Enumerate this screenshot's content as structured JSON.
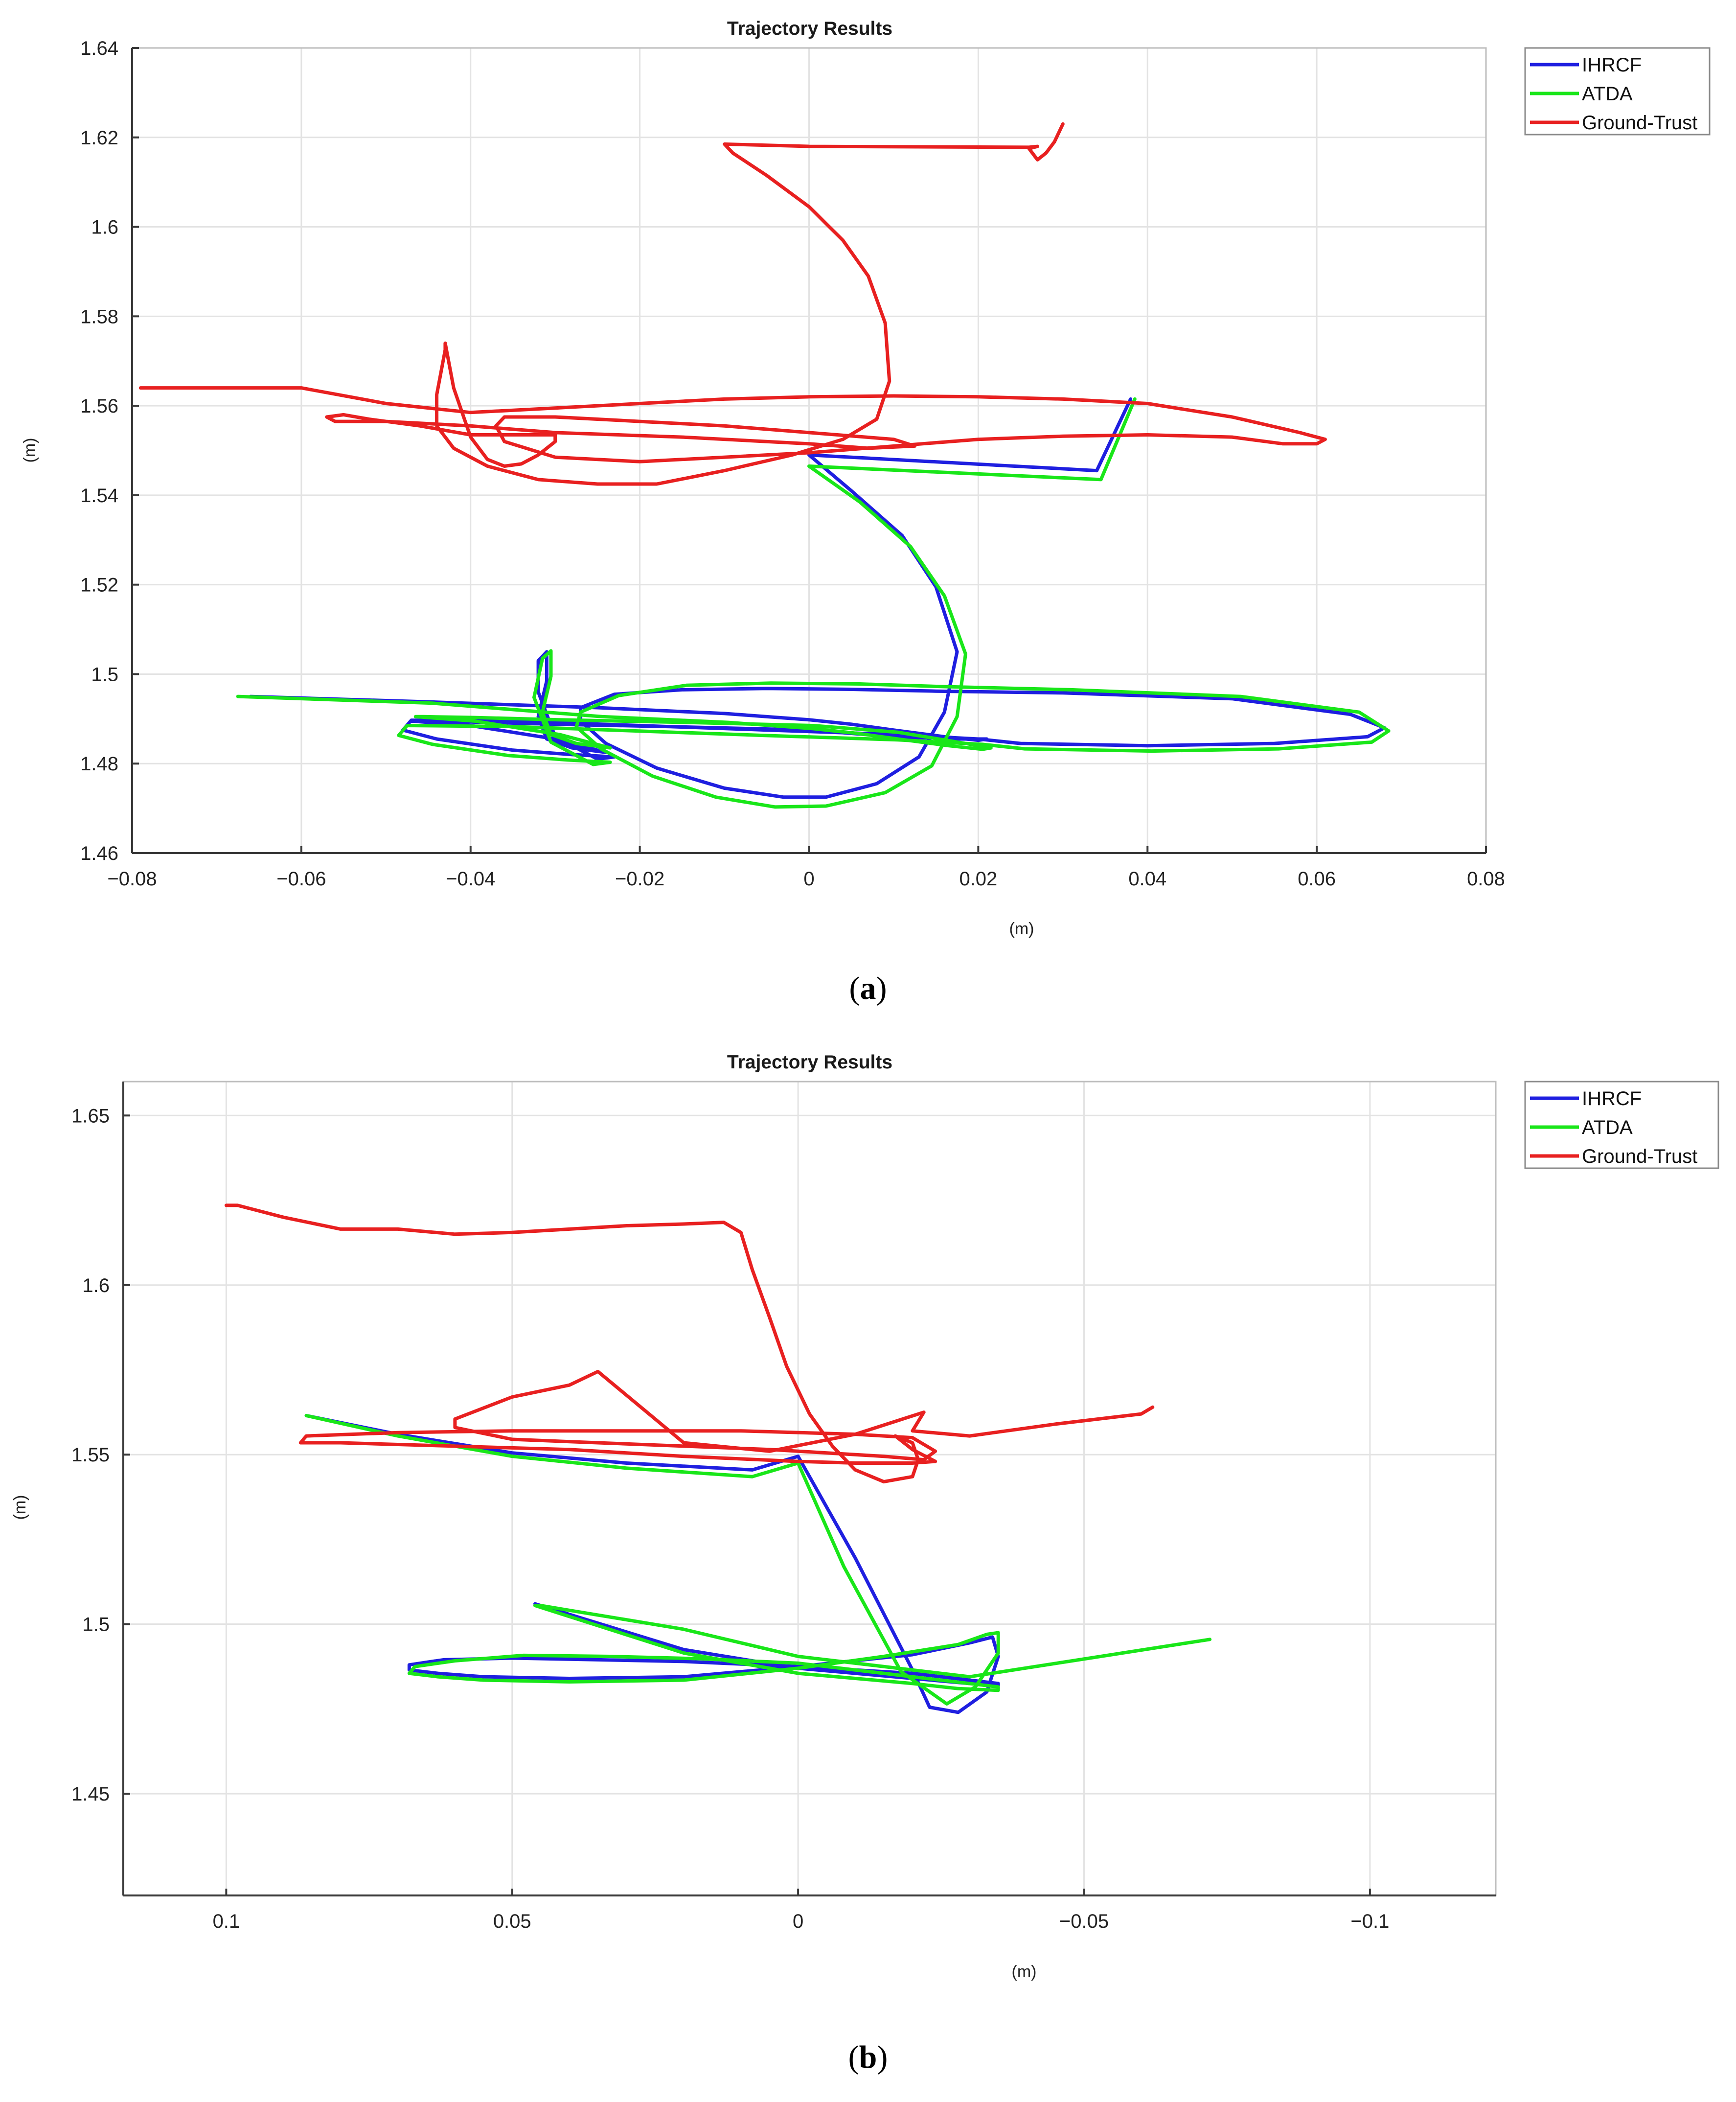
{
  "chart_data": [
    {
      "type": "line",
      "panel": "a",
      "caption_letter": "a",
      "title": "Trajectory Results",
      "xlabel": "(m)",
      "ylabel": "(m)",
      "xlim": [
        -0.08,
        0.08
      ],
      "ylim": [
        1.46,
        1.64
      ],
      "xticks": [
        -0.08,
        -0.06,
        -0.04,
        -0.02,
        0,
        0.02,
        0.04,
        0.06,
        0.08
      ],
      "xtick_labels": [
        "−0.08",
        "−0.06",
        "−0.04",
        "−0.02",
        "0",
        "0.02",
        "0.04",
        "0.06",
        "0.08"
      ],
      "yticks": [
        1.46,
        1.48,
        1.5,
        1.52,
        1.54,
        1.56,
        1.58,
        1.6,
        1.62,
        1.64
      ],
      "ytick_labels": [
        "1.46",
        "1.48",
        "1.5",
        "1.52",
        "1.54",
        "1.56",
        "1.58",
        "1.6",
        "1.62",
        "1.64"
      ],
      "grid": true,
      "legend_position": "top-right",
      "series": [
        {
          "name": "IHRCF",
          "color": "#1f1fe0",
          "x": [
            0,
            0.034,
            0.038,
            0.034,
            0,
            0.005,
            0.011,
            0.015,
            0.0175,
            0.016,
            0.013,
            0.008,
            0.002,
            -0.003,
            -0.01,
            -0.018,
            -0.024,
            -0.027,
            -0.027,
            -0.023,
            -0.015,
            -0.005,
            0.005,
            0.015,
            0.03,
            0.05,
            0.064,
            0.068,
            0.066,
            0.055,
            0.04,
            0.025,
            0.02,
            0.01,
            -0.005,
            -0.02,
            -0.035,
            -0.047,
            -0.048,
            -0.044,
            -0.035,
            -0.028,
            -0.023,
            -0.025,
            -0.03,
            -0.032,
            -0.032,
            -0.031,
            -0.031,
            -0.032,
            -0.031,
            -0.028,
            -0.024,
            -0.03,
            -0.04,
            -0.047,
            -0.046,
            -0.04,
            -0.03,
            -0.015,
            0,
            0.01,
            0.018,
            0.021,
            0.02,
            0.016,
            0.01,
            0.005,
            0,
            -0.01,
            -0.025,
            -0.045,
            -0.066
          ],
          "y": [
            1.549,
            1.5455,
            1.5615,
            1.5455,
            1.549,
            1.541,
            1.531,
            1.5195,
            1.505,
            1.4915,
            1.4815,
            1.4755,
            1.4725,
            1.4725,
            1.4745,
            1.479,
            1.4845,
            1.4895,
            1.4925,
            1.4955,
            1.4965,
            1.4968,
            1.4966,
            1.4962,
            1.4958,
            1.4945,
            1.491,
            1.488,
            1.486,
            1.4845,
            1.484,
            1.4845,
            1.4855,
            1.4865,
            1.4875,
            1.4885,
            1.4895,
            1.4897,
            1.4875,
            1.4855,
            1.483,
            1.482,
            1.4815,
            1.481,
            1.486,
            1.496,
            1.503,
            1.505,
            1.4985,
            1.4905,
            1.4855,
            1.4835,
            1.4825,
            1.4855,
            1.4885,
            1.4895,
            1.4895,
            1.4893,
            1.4888,
            1.4882,
            1.4875,
            1.486,
            1.4855,
            1.4855,
            1.4852,
            1.486,
            1.4875,
            1.4888,
            1.4898,
            1.4912,
            1.4925,
            1.4938,
            1.495
          ]
        },
        {
          "name": "ATDA",
          "color": "#19e619",
          "x": [
            0,
            0.0345,
            0.0385,
            0.0345,
            0,
            0.006,
            0.012,
            0.016,
            0.0185,
            0.0175,
            0.0145,
            0.009,
            0.002,
            -0.004,
            -0.011,
            -0.0185,
            -0.0245,
            -0.0275,
            -0.027,
            -0.0225,
            -0.0145,
            -0.0045,
            0.006,
            0.016,
            0.031,
            0.051,
            0.065,
            0.0685,
            0.0665,
            0.0555,
            0.0405,
            0.0255,
            0.0205,
            0.0105,
            -0.0055,
            -0.0205,
            -0.0355,
            -0.0475,
            -0.0485,
            -0.0445,
            -0.0355,
            -0.0285,
            -0.0235,
            -0.0255,
            -0.0305,
            -0.0325,
            -0.0315,
            -0.0305,
            -0.0305,
            -0.0315,
            -0.0305,
            -0.0275,
            -0.0235,
            -0.0295,
            -0.0395,
            -0.0465,
            -0.0455,
            -0.0395,
            -0.0295,
            -0.0145,
            0.0005,
            0.0105,
            0.0185,
            0.0215,
            0.0205,
            0.0165,
            0.0105,
            0.0055,
            0.0005,
            -0.0095,
            -0.0245,
            -0.0445,
            -0.0675
          ],
          "y": [
            1.5465,
            1.5435,
            1.5615,
            1.5435,
            1.5465,
            1.5385,
            1.5285,
            1.5175,
            1.5045,
            1.4905,
            1.4795,
            1.4735,
            1.4705,
            1.4703,
            1.4725,
            1.4772,
            1.4832,
            1.4882,
            1.4915,
            1.4952,
            1.4975,
            1.498,
            1.4978,
            1.4972,
            1.4965,
            1.495,
            1.4915,
            1.4873,
            1.4848,
            1.4833,
            1.4828,
            1.4833,
            1.4843,
            1.4853,
            1.4863,
            1.4873,
            1.4883,
            1.4885,
            1.4863,
            1.4843,
            1.4818,
            1.4808,
            1.4803,
            1.4798,
            1.4848,
            1.4948,
            1.5035,
            1.5052,
            1.4995,
            1.4915,
            1.4865,
            1.4845,
            1.4835,
            1.4865,
            1.4895,
            1.4905,
            1.4905,
            1.4903,
            1.4898,
            1.4892,
            1.4885,
            1.487,
            1.4845,
            1.4835,
            1.4832,
            1.484,
            1.4855,
            1.4868,
            1.4878,
            1.4892,
            1.4905,
            1.4935,
            1.495
          ]
        },
        {
          "name": "Ground-Trust",
          "color": "#e82020",
          "x": [
            0.03,
            0.029,
            0.028,
            0.027,
            0.026,
            0.027,
            0.026,
            0,
            -0.01,
            -0.009,
            -0.005,
            0,
            0.004,
            0.007,
            0.009,
            0.0095,
            0.008,
            0.004,
            -0.002,
            -0.01,
            -0.018,
            -0.025,
            -0.032,
            -0.038,
            -0.042,
            -0.044,
            -0.044,
            -0.043,
            -0.043,
            -0.042,
            -0.04,
            -0.038,
            -0.036,
            -0.034,
            -0.032,
            -0.03,
            -0.03,
            -0.034,
            -0.04,
            -0.046,
            -0.052,
            -0.055,
            -0.057,
            -0.056,
            -0.05,
            -0.04,
            -0.03,
            -0.015,
            0,
            0.007,
            0.0125,
            0.01,
            0,
            -0.01,
            -0.02,
            -0.03,
            -0.036,
            -0.037,
            -0.036,
            -0.03,
            -0.02,
            0,
            0.02,
            0.03,
            0.04,
            0.05,
            0.056,
            0.06,
            0.061,
            0.058,
            0.05,
            0.04,
            0.03,
            0.02,
            0.01,
            0,
            -0.01,
            -0.02,
            -0.03,
            -0.04,
            -0.05,
            -0.06,
            -0.079
          ],
          "y": [
            1.623,
            1.619,
            1.6165,
            1.615,
            1.6175,
            1.618,
            1.6178,
            1.618,
            1.6185,
            1.6165,
            1.6115,
            1.6045,
            1.597,
            1.589,
            1.5785,
            1.5655,
            1.557,
            1.5525,
            1.549,
            1.5455,
            1.5425,
            1.5425,
            1.5435,
            1.5465,
            1.5505,
            1.5555,
            1.5625,
            1.5725,
            1.574,
            1.564,
            1.553,
            1.548,
            1.5465,
            1.547,
            1.549,
            1.552,
            1.5535,
            1.5535,
            1.5535,
            1.5555,
            1.557,
            1.558,
            1.5575,
            1.5565,
            1.5565,
            1.5555,
            1.554,
            1.553,
            1.5515,
            1.5505,
            1.551,
            1.5525,
            1.554,
            1.5555,
            1.5565,
            1.5575,
            1.5575,
            1.5555,
            1.552,
            1.5485,
            1.5475,
            1.5495,
            1.5525,
            1.5532,
            1.5535,
            1.553,
            1.5515,
            1.5515,
            1.5525,
            1.554,
            1.5575,
            1.5605,
            1.5615,
            1.562,
            1.5622,
            1.562,
            1.5615,
            1.5605,
            1.5595,
            1.5585,
            1.5605,
            1.564,
            1.564
          ]
        }
      ]
    },
    {
      "type": "line",
      "panel": "b",
      "caption_letter": "b",
      "title": "Trajectory Results",
      "xlabel": "(m)",
      "ylabel": "(m)",
      "xlim": [
        0.118,
        -0.122
      ],
      "ylim": [
        1.42,
        1.66
      ],
      "xticks": [
        0.1,
        0.05,
        0,
        -0.05,
        -0.1
      ],
      "xtick_labels": [
        "0.1",
        "0.05",
        "0",
        "−0.05",
        "−0.1"
      ],
      "yticks": [
        1.45,
        1.5,
        1.55,
        1.6,
        1.65
      ],
      "ytick_labels": [
        "1.45",
        "1.5",
        "1.55",
        "1.6",
        "1.65"
      ],
      "grid": true,
      "legend_position": "top-right",
      "series": [
        {
          "name": "IHRCF",
          "color": "#1f1fe0",
          "x": [
            0.086,
            0.07,
            0.05,
            0.03,
            0.008,
            0,
            -0.01,
            -0.02,
            -0.023,
            -0.028,
            -0.033,
            -0.035,
            -0.034,
            -0.03,
            -0.02,
            0,
            0.02,
            0.04,
            0.055,
            0.063,
            0.068,
            0.068,
            0.062,
            0.05,
            0.035,
            0.02,
            0,
            -0.02,
            -0.03,
            -0.035,
            -0.035,
            -0.03,
            -0.02,
            0,
            0.02,
            0.046
          ],
          "y": [
            1.5615,
            1.556,
            1.5505,
            1.5475,
            1.5455,
            1.5495,
            1.5195,
            1.4865,
            1.4755,
            1.474,
            1.48,
            1.4905,
            1.4962,
            1.4945,
            1.491,
            1.4875,
            1.4845,
            1.484,
            1.4845,
            1.4855,
            1.4865,
            1.488,
            1.4895,
            1.49,
            1.4895,
            1.489,
            1.4875,
            1.4855,
            1.4835,
            1.4825,
            1.482,
            1.4825,
            1.484,
            1.487,
            1.4925,
            1.506
          ]
        },
        {
          "name": "ATDA",
          "color": "#19e619",
          "x": [
            0.086,
            0.07,
            0.05,
            0.03,
            0.008,
            0,
            -0.008,
            -0.018,
            -0.026,
            -0.031,
            -0.035,
            -0.035,
            -0.033,
            -0.028,
            -0.015,
            0,
            0.02,
            0.04,
            0.055,
            0.063,
            0.068,
            0.067,
            0.06,
            0.048,
            0.033,
            0.017,
            0,
            -0.02,
            -0.035,
            -0.035,
            -0.028,
            -0.02,
            0,
            0.02,
            0.046,
            0.045,
            0.02,
            0,
            -0.03,
            -0.072
          ],
          "y": [
            1.5615,
            1.5555,
            1.5495,
            1.546,
            1.5435,
            1.5475,
            1.517,
            1.486,
            1.4765,
            1.4815,
            1.4915,
            1.4975,
            1.497,
            1.494,
            1.4905,
            1.487,
            1.4835,
            1.483,
            1.4835,
            1.4845,
            1.4855,
            1.4875,
            1.4892,
            1.4908,
            1.4905,
            1.4898,
            1.4885,
            1.4845,
            1.4815,
            1.4805,
            1.481,
            1.4825,
            1.4855,
            1.4915,
            1.5055,
            1.5055,
            1.4985,
            1.4905,
            1.4845,
            1.4955
          ]
        },
        {
          "name": "Ground-Trust",
          "color": "#e82020",
          "x": [
            0.1,
            0.098,
            0.09,
            0.08,
            0.07,
            0.06,
            0.05,
            0.03,
            0.02,
            0.013,
            0.01,
            0.008,
            0.005,
            0.002,
            -0.002,
            -0.006,
            -0.01,
            -0.015,
            -0.02,
            -0.021,
            -0.02,
            -0.017,
            -0.02,
            -0.024,
            -0.02,
            -0.01,
            0,
            0.02,
            0.04,
            0.06,
            0.08,
            0.087,
            0.086,
            0.07,
            0.05,
            0.03,
            0.01,
            -0.01,
            -0.02,
            -0.024,
            -0.022,
            -0.015,
            -0.005,
            0.005,
            0.02,
            0.035,
            0.05,
            0.06,
            0.06,
            0.05,
            0.04,
            0.035,
            0.02,
            0.005,
            -0.01,
            -0.022,
            -0.02,
            -0.03,
            -0.045,
            -0.06,
            -0.062
          ],
          "y": [
            1.6235,
            1.6235,
            1.62,
            1.6165,
            1.6165,
            1.615,
            1.6155,
            1.6175,
            1.618,
            1.6185,
            1.6155,
            1.6045,
            1.5905,
            1.576,
            1.562,
            1.5525,
            1.5455,
            1.542,
            1.5435,
            1.5485,
            1.5535,
            1.5555,
            1.5515,
            1.548,
            1.5475,
            1.5475,
            1.548,
            1.5495,
            1.5515,
            1.5525,
            1.5535,
            1.5535,
            1.5555,
            1.5565,
            1.557,
            1.557,
            1.557,
            1.556,
            1.555,
            1.551,
            1.5485,
            1.5495,
            1.5505,
            1.5515,
            1.5525,
            1.5535,
            1.5545,
            1.558,
            1.5605,
            1.567,
            1.5705,
            1.5745,
            1.5535,
            1.551,
            1.556,
            1.5625,
            1.557,
            1.5555,
            1.559,
            1.562,
            1.564
          ]
        }
      ]
    }
  ]
}
